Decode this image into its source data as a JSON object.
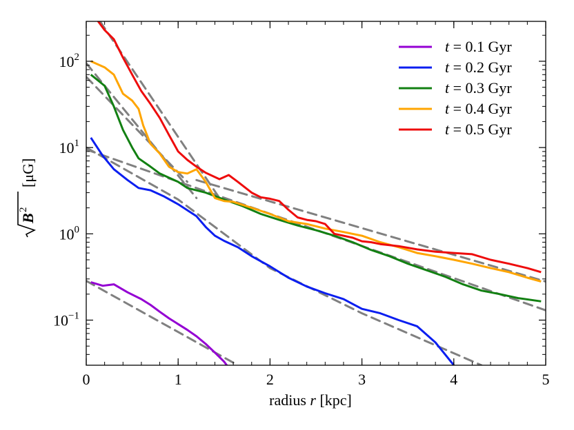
{
  "chart_data": {
    "type": "line",
    "xlabel": "radius r [kpc]",
    "xlabel_prefix": "radius",
    "xlabel_var": "r",
    "xlabel_unit": "[kpc]",
    "ylabel_unit": "[μG]",
    "xlim": [
      0,
      5
    ],
    "ylim": [
      0.03,
      290
    ],
    "yscale": "log",
    "x_ticks": [
      0,
      1,
      2,
      3,
      4,
      5
    ],
    "x_tick_labels": [
      "0",
      "1",
      "2",
      "3",
      "4",
      "5"
    ],
    "y_ticks": [
      0.1,
      1,
      10,
      100
    ],
    "y_tick_bases": [
      "10",
      "10",
      "10",
      "10"
    ],
    "y_tick_exps": [
      "−1",
      "0",
      "1",
      "2"
    ],
    "legend_position": "top-right",
    "series": [
      {
        "name": "t = 0.1 Gyr",
        "var": "t",
        "value_text": "= 0.1 Gyr",
        "color": "#9400d3",
        "points": [
          [
            0.05,
            0.275
          ],
          [
            0.18,
            0.25
          ],
          [
            0.3,
            0.26
          ],
          [
            0.45,
            0.21
          ],
          [
            0.6,
            0.175
          ],
          [
            0.7,
            0.15
          ],
          [
            0.8,
            0.125
          ],
          [
            0.9,
            0.105
          ],
          [
            1.0,
            0.09
          ],
          [
            1.1,
            0.077
          ],
          [
            1.2,
            0.065
          ],
          [
            1.3,
            0.053
          ],
          [
            1.4,
            0.042
          ],
          [
            1.5,
            0.033
          ],
          [
            1.55,
            0.028
          ]
        ]
      },
      {
        "name": "t = 0.2 Gyr",
        "var": "t",
        "value_text": "= 0.2 Gyr",
        "color": "#0a1ef0",
        "points": [
          [
            0.05,
            13
          ],
          [
            0.18,
            8.0
          ],
          [
            0.3,
            5.6
          ],
          [
            0.45,
            4.2
          ],
          [
            0.57,
            3.4
          ],
          [
            0.7,
            3.2
          ],
          [
            0.85,
            2.7
          ],
          [
            1.0,
            2.2
          ],
          [
            1.2,
            1.6
          ],
          [
            1.3,
            1.2
          ],
          [
            1.4,
            0.95
          ],
          [
            1.5,
            0.83
          ],
          [
            1.65,
            0.7
          ],
          [
            1.8,
            0.55
          ],
          [
            2.0,
            0.42
          ],
          [
            2.2,
            0.31
          ],
          [
            2.4,
            0.245
          ],
          [
            2.6,
            0.205
          ],
          [
            2.8,
            0.175
          ],
          [
            3.0,
            0.135
          ],
          [
            3.2,
            0.12
          ],
          [
            3.4,
            0.1
          ],
          [
            3.6,
            0.085
          ],
          [
            3.8,
            0.055
          ],
          [
            4.0,
            0.03
          ]
        ]
      },
      {
        "name": "t = 0.3 Gyr",
        "var": "t",
        "value_text": "= 0.3 Gyr",
        "color": "#128012",
        "points": [
          [
            0.05,
            70
          ],
          [
            0.2,
            52
          ],
          [
            0.3,
            30
          ],
          [
            0.4,
            16
          ],
          [
            0.5,
            10
          ],
          [
            0.57,
            7.5
          ],
          [
            0.7,
            6.0
          ],
          [
            0.8,
            5.0
          ],
          [
            1.0,
            4.0
          ],
          [
            1.1,
            3.4
          ],
          [
            1.3,
            3.0
          ],
          [
            1.5,
            2.5
          ],
          [
            1.7,
            2.1
          ],
          [
            1.9,
            1.7
          ],
          [
            2.1,
            1.45
          ],
          [
            2.3,
            1.25
          ],
          [
            2.5,
            1.1
          ],
          [
            2.7,
            0.95
          ],
          [
            2.9,
            0.8
          ],
          [
            3.1,
            0.65
          ],
          [
            3.3,
            0.55
          ],
          [
            3.5,
            0.45
          ],
          [
            3.7,
            0.38
          ],
          [
            3.9,
            0.32
          ],
          [
            4.1,
            0.26
          ],
          [
            4.3,
            0.22
          ],
          [
            4.5,
            0.2
          ],
          [
            4.7,
            0.18
          ],
          [
            4.95,
            0.165
          ]
        ]
      },
      {
        "name": "t = 0.4 Gyr",
        "var": "t",
        "value_text": "= 0.4 Gyr",
        "color": "#ffa500",
        "points": [
          [
            0.05,
            100
          ],
          [
            0.2,
            85
          ],
          [
            0.3,
            70
          ],
          [
            0.4,
            42
          ],
          [
            0.5,
            35
          ],
          [
            0.57,
            28
          ],
          [
            0.62,
            18
          ],
          [
            0.7,
            11
          ],
          [
            0.8,
            8.5
          ],
          [
            0.9,
            6.0
          ],
          [
            1.0,
            5.2
          ],
          [
            1.1,
            5.0
          ],
          [
            1.2,
            5.6
          ],
          [
            1.3,
            4.0
          ],
          [
            1.4,
            2.6
          ],
          [
            1.5,
            2.4
          ],
          [
            1.6,
            2.35
          ],
          [
            1.8,
            2.0
          ],
          [
            2.0,
            1.7
          ],
          [
            2.2,
            1.4
          ],
          [
            2.4,
            1.3
          ],
          [
            2.6,
            1.15
          ],
          [
            2.8,
            1.05
          ],
          [
            3.0,
            0.95
          ],
          [
            3.2,
            0.8
          ],
          [
            3.4,
            0.7
          ],
          [
            3.6,
            0.6
          ],
          [
            3.8,
            0.55
          ],
          [
            4.0,
            0.5
          ],
          [
            4.2,
            0.45
          ],
          [
            4.4,
            0.4
          ],
          [
            4.6,
            0.36
          ],
          [
            4.8,
            0.31
          ],
          [
            4.95,
            0.28
          ]
        ]
      },
      {
        "name": "t = 0.5 Gyr",
        "var": "t",
        "value_text": "= 0.5 Gyr",
        "color": "#ee0c0c",
        "points": [
          [
            0.1,
            320
          ],
          [
            0.2,
            230
          ],
          [
            0.3,
            180
          ],
          [
            0.4,
            110
          ],
          [
            0.5,
            70
          ],
          [
            0.6,
            45
          ],
          [
            0.7,
            32
          ],
          [
            0.8,
            22
          ],
          [
            0.9,
            14
          ],
          [
            1.0,
            9.0
          ],
          [
            1.1,
            7.2
          ],
          [
            1.2,
            6.0
          ],
          [
            1.3,
            5.1
          ],
          [
            1.45,
            4.3
          ],
          [
            1.55,
            4.8
          ],
          [
            1.65,
            4.0
          ],
          [
            1.8,
            3.0
          ],
          [
            1.9,
            2.65
          ],
          [
            2.0,
            2.55
          ],
          [
            2.1,
            2.4
          ],
          [
            2.2,
            1.9
          ],
          [
            2.3,
            1.55
          ],
          [
            2.4,
            1.45
          ],
          [
            2.5,
            1.4
          ],
          [
            2.6,
            1.3
          ],
          [
            2.7,
            1.0
          ],
          [
            2.8,
            0.95
          ],
          [
            2.9,
            0.9
          ],
          [
            3.0,
            0.82
          ],
          [
            3.1,
            0.8
          ],
          [
            3.2,
            0.76
          ],
          [
            3.4,
            0.72
          ],
          [
            3.6,
            0.66
          ],
          [
            3.8,
            0.62
          ],
          [
            4.0,
            0.6
          ],
          [
            4.2,
            0.58
          ],
          [
            4.4,
            0.5
          ],
          [
            4.6,
            0.45
          ],
          [
            4.8,
            0.4
          ],
          [
            4.95,
            0.36
          ]
        ]
      }
    ],
    "fit_lines": [
      {
        "name": "fit-0.1",
        "color": "#808080",
        "points": [
          [
            0.0,
            0.285
          ],
          [
            1.65,
            0.03
          ]
        ]
      },
      {
        "name": "fit-0.2",
        "color": "#808080",
        "points": [
          [
            0.0,
            10.0
          ],
          [
            1.0,
            2.5
          ],
          [
            2.0,
            0.4
          ],
          [
            3.0,
            0.12
          ],
          [
            4.3,
            0.03
          ]
        ]
      },
      {
        "name": "fit-0.3a",
        "color": "#808080",
        "points": [
          [
            0.0,
            66
          ],
          [
            1.1,
            4.0
          ]
        ]
      },
      {
        "name": "fit-0.3b",
        "color": "#808080",
        "points": [
          [
            0.0,
            9.5
          ],
          [
            5.0,
            0.13
          ]
        ]
      },
      {
        "name": "fit-0.4",
        "color": "#808080",
        "points": [
          [
            0.0,
            95
          ],
          [
            1.2,
            2.6
          ]
        ]
      },
      {
        "name": "fit-0.5a",
        "color": "#808080",
        "points": [
          [
            0.15,
            290
          ],
          [
            1.45,
            2.6
          ]
        ]
      },
      {
        "name": "fit-0.5b",
        "color": "#808080",
        "points": [
          [
            1.2,
            4.2
          ],
          [
            5.0,
            0.28
          ]
        ]
      }
    ]
  }
}
